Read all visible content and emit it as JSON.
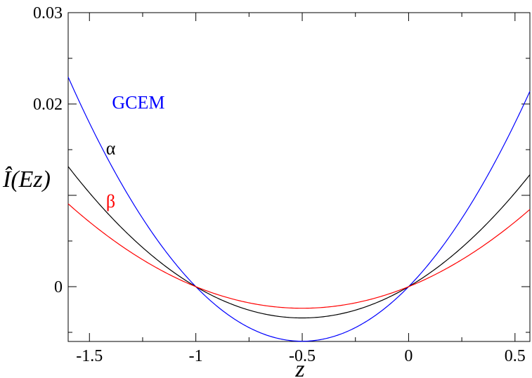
{
  "chart_data": {
    "type": "line",
    "xlabel": "z",
    "ylabel": "Î(Ez)",
    "xlim": [
      -1.6,
      0.57
    ],
    "ylim": [
      -0.006,
      0.03
    ],
    "x_ticks": [
      -1.5,
      -1,
      -0.5,
      0,
      0.5
    ],
    "x_tick_labels": [
      "-1.5",
      "-1",
      "-0.5",
      "0",
      "0.5"
    ],
    "y_ticks": [
      0,
      0.02,
      0.03
    ],
    "y_tick_labels": [
      "0",
      "0.02",
      "0.03"
    ],
    "grid": false,
    "series": [
      {
        "name": "GCEM",
        "color": "#0000ff",
        "coef": 0.0239,
        "label_at": [
          -1.27,
          0.0195
        ]
      },
      {
        "name": "α",
        "color": "#000000",
        "coef": 0.0137,
        "label_at": [
          -1.4,
          0.0145
        ]
      },
      {
        "name": "β",
        "color": "#ff0000",
        "coef": 0.00945,
        "label_at": [
          -1.4,
          0.0087
        ]
      }
    ]
  }
}
